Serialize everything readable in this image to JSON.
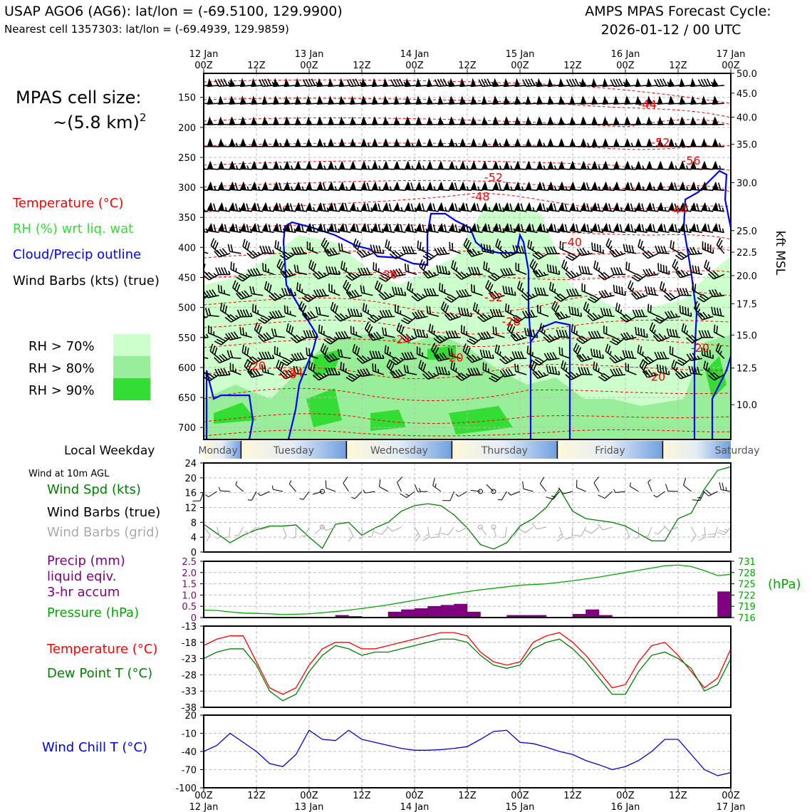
{
  "header": {
    "title_left_1": "USAP AGO6 (AG6): lat/lon = (-69.5100, 129.9900)",
    "title_left_2": "Nearest cell 1357303: lat/lon = (-69.4939, 129.9859)",
    "title_right_1": "AMPS MPAS Forecast Cycle:",
    "title_right_2": "2026-01-12 / 00 UTC"
  },
  "cell_size": {
    "line1": "MPAS cell size:",
    "line2": "~(5.8 km)",
    "sup": "2"
  },
  "legend_top": {
    "temperature": "Temperature (°C)",
    "rh": "RH (%) wrt liq. wat",
    "cloud": "Cloud/Precip outline",
    "wind": "Wind Barbs (kts) (true)",
    "rh70": "RH > 70%",
    "rh80": "RH > 80%",
    "rh90": "RH > 90%"
  },
  "colors": {
    "temperature": "#ff0000",
    "rh_text": "#33dd33",
    "cloud": "#0000ff",
    "rh70": "#ccffcc",
    "rh80": "#99ee99",
    "rh90": "#33dd33",
    "precip": "#800080",
    "pressure": "#00aa00",
    "dewpoint": "#008000",
    "windchill": "#0000dd",
    "grid_barb": "#aaaaaa"
  },
  "time_axis": {
    "top_labels": [
      {
        "t": 0,
        "l1": "12 Jan",
        "l2": "00Z"
      },
      {
        "t": 12,
        "l1": "",
        "l2": "12Z"
      },
      {
        "t": 24,
        "l1": "13 Jan",
        "l2": "00Z"
      },
      {
        "t": 36,
        "l1": "",
        "l2": "12Z"
      },
      {
        "t": 48,
        "l1": "14 Jan",
        "l2": "00Z"
      },
      {
        "t": 60,
        "l1": "",
        "l2": "12Z"
      },
      {
        "t": 72,
        "l1": "15 Jan",
        "l2": "00Z"
      },
      {
        "t": 84,
        "l1": "",
        "l2": "12Z"
      },
      {
        "t": 96,
        "l1": "16 Jan",
        "l2": "00Z"
      },
      {
        "t": 108,
        "l1": "",
        "l2": "12Z"
      },
      {
        "t": 120,
        "l1": "17 Jan",
        "l2": "00Z"
      }
    ]
  },
  "profile": {
    "pressure_ticks": [
      150,
      200,
      250,
      300,
      350,
      400,
      450,
      500,
      550,
      600,
      650,
      700
    ],
    "kft_ticks": [
      "50.0",
      "45.0",
      "40.0",
      "35.0",
      "30.0",
      "25.0",
      "22.5",
      "20.0",
      "17.5",
      "15.0",
      "12.5",
      "10.0"
    ],
    "kft_label": "kft MSL",
    "temp_labels": [
      {
        "t": 101,
        "p": 162,
        "v": "-44"
      },
      {
        "t": 104,
        "p": 226,
        "v": "-52"
      },
      {
        "t": 111,
        "p": 256,
        "v": "-56"
      },
      {
        "t": 66,
        "p": 284,
        "v": "-52"
      },
      {
        "t": 63,
        "p": 316,
        "v": "-48"
      },
      {
        "t": 108,
        "p": 338,
        "v": "-44"
      },
      {
        "t": 84,
        "p": 392,
        "v": "-40"
      },
      {
        "t": 42,
        "p": 446,
        "v": "-36"
      },
      {
        "t": 66,
        "p": 484,
        "v": "-32"
      },
      {
        "t": 70,
        "p": 524,
        "v": "-28"
      },
      {
        "t": 45,
        "p": 554,
        "v": "-24"
      },
      {
        "t": 57,
        "p": 584,
        "v": "-20"
      },
      {
        "t": 113,
        "p": 568,
        "v": "-20"
      },
      {
        "t": 12,
        "p": 598,
        "v": "-20"
      },
      {
        "t": 19,
        "p": 612,
        "v": "-28"
      },
      {
        "t": 21,
        "p": 609,
        "v": "24"
      },
      {
        "t": 103,
        "p": 616,
        "v": "-20"
      }
    ]
  },
  "weekday": {
    "label": "Local Weekday",
    "days": [
      "Monday",
      "Tuesday",
      "Wednesday",
      "Thursday",
      "Friday",
      "Saturday"
    ]
  },
  "wind_panel": {
    "title": "Wind at 10m AGL",
    "label_spd": "Wind Spd (kts)",
    "label_true": "Wind Barbs (true)",
    "label_grid": "Wind Barbs (grid)",
    "y_ticks": [
      0,
      4,
      8,
      12,
      16,
      20,
      24
    ]
  },
  "precip_panel": {
    "label1": "Precip (mm)",
    "label2": "liquid eqiv.",
    "label3": "3-hr accum",
    "label4": "Pressure (hPa)",
    "hpa_unit": "(hPa)",
    "left_ticks": [
      "0",
      "0.5",
      "1.0",
      "1.5",
      "2.0",
      "2.5"
    ],
    "right_ticks": [
      "716",
      "719",
      "722",
      "725",
      "728",
      "731"
    ]
  },
  "temp_panel": {
    "label_t": "Temperature (°C)",
    "label_td": "Dew Point T (°C)",
    "y_ticks": [
      -38,
      -33,
      -28,
      -23,
      -18,
      -13
    ]
  },
  "wc_panel": {
    "label": "Wind Chill T (°C)",
    "y_ticks": [
      -100,
      -70,
      -40,
      -10,
      20
    ]
  },
  "chart_data": {
    "type": "line",
    "x_hours": [
      0,
      3,
      6,
      9,
      12,
      15,
      18,
      21,
      24,
      27,
      30,
      33,
      36,
      39,
      42,
      45,
      48,
      51,
      54,
      57,
      60,
      63,
      66,
      69,
      72,
      75,
      78,
      81,
      84,
      87,
      90,
      93,
      96,
      99,
      102,
      105,
      108,
      111,
      114,
      117,
      120
    ],
    "wind_speed_kts": [
      7.5,
      5,
      2.5,
      4.5,
      6,
      7,
      7,
      7.3,
      4,
      1,
      7.5,
      8,
      4.5,
      6.5,
      8,
      11,
      12.5,
      13,
      12.5,
      10,
      6.5,
      2,
      0.8,
      2.5,
      7,
      9,
      12,
      17,
      11,
      9,
      8.5,
      8,
      7,
      5,
      3,
      3,
      9,
      10.5,
      17,
      22,
      23
    ],
    "precip_mm": [
      0,
      0,
      0,
      0,
      0,
      0,
      0,
      0,
      0,
      0,
      0,
      0.1,
      0.05,
      0,
      0,
      0.25,
      0.35,
      0.4,
      0.5,
      0.55,
      0.6,
      0.25,
      0,
      0,
      0.1,
      0.1,
      0.1,
      0,
      0,
      0.15,
      0.35,
      0.1,
      0,
      0,
      0,
      0,
      0,
      0,
      0,
      0,
      1.15
    ],
    "pressure_hpa": [
      718,
      717.9,
      717.5,
      717.2,
      717.1,
      717,
      716.8,
      716.9,
      717,
      717.3,
      717.6,
      718,
      718.4,
      718.9,
      719.4,
      720,
      720.6,
      721.2,
      721.8,
      722.4,
      722.9,
      723.4,
      723.8,
      724.2,
      724.6,
      724.8,
      725,
      725.4,
      725.8,
      726.3,
      726.8,
      727.4,
      728,
      728.6,
      729.2,
      729.8,
      730,
      729.6,
      728.5,
      727.2,
      727.5
    ],
    "temperature_c": [
      -19,
      -17,
      -16,
      -16,
      -24,
      -32,
      -34,
      -32,
      -25,
      -20,
      -18,
      -18,
      -20,
      -20,
      -19,
      -18,
      -17,
      -16,
      -15,
      -15,
      -16,
      -21,
      -24,
      -25,
      -24,
      -18,
      -16,
      -15,
      -18,
      -22,
      -27,
      -32,
      -31,
      -24,
      -19,
      -18,
      -22,
      -27,
      -32,
      -29,
      -20
    ],
    "dewpoint_c": [
      -23,
      -21,
      -20,
      -20,
      -25,
      -33,
      -36,
      -34,
      -27,
      -22,
      -19,
      -20,
      -22,
      -21,
      -21,
      -20,
      -19,
      -18,
      -17,
      -17,
      -18,
      -22,
      -25,
      -26,
      -25,
      -20,
      -18,
      -17,
      -20,
      -24,
      -29,
      -34,
      -34,
      -27,
      -22,
      -21,
      -23,
      -26,
      -33,
      -31,
      -23
    ],
    "windchill_c": [
      -40,
      -30,
      -10,
      -25,
      -40,
      -60,
      -65,
      -45,
      -5,
      -20,
      -22,
      -5,
      -20,
      -25,
      -30,
      -35,
      -38,
      -38,
      -37,
      -35,
      -32,
      -20,
      -7,
      -5,
      -25,
      -27,
      -33,
      -40,
      -45,
      -55,
      -62,
      -70,
      -65,
      -55,
      -40,
      -20,
      -20,
      -45,
      -70,
      -80,
      -75
    ],
    "ylim_wind": [
      0,
      24
    ],
    "ylim_precip": [
      0,
      2.5
    ],
    "ylim_pressure": [
      716,
      731
    ],
    "ylim_temp": [
      -38,
      -13
    ],
    "ylim_windchill": [
      -100,
      20
    ],
    "ylim_profile_hpa": [
      110,
      720
    ],
    "xlim_hours": [
      0,
      120
    ]
  }
}
